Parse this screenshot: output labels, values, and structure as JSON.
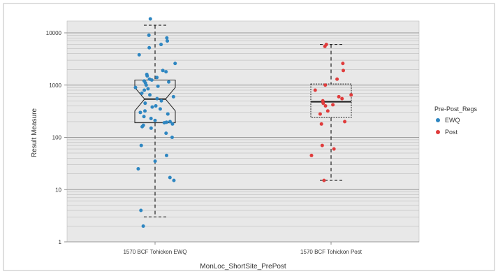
{
  "chart_data": {
    "type": "box",
    "xlabel": "MonLoc_ShortSite_PrePost",
    "ylabel": "Result Measure",
    "y_scale": "log",
    "ylim": [
      1,
      20000
    ],
    "y_ticks": [
      {
        "value": 1,
        "label": "1"
      },
      {
        "value": 10,
        "label": "10"
      },
      {
        "value": 100,
        "label": "100"
      },
      {
        "value": 1000,
        "label": "1000"
      },
      {
        "value": 10000,
        "label": "10000"
      }
    ],
    "categories": [
      "1570 BCF Tohickon EWQ",
      "1570 BCF Tohickon Post"
    ],
    "legend": {
      "title": "Pre-Post_Regs",
      "position": "right",
      "items": [
        {
          "label": "EWQ",
          "color": "#2e86c1"
        },
        {
          "label": "Post",
          "color": "#e03c3c"
        }
      ]
    },
    "boxes": [
      {
        "category": "1570 BCF Tohickon EWQ",
        "series": "EWQ",
        "whisker_low": 3,
        "q1": 190,
        "median": 540,
        "q3": 1250,
        "whisker_high": 14000,
        "notch_low": 320,
        "notch_high": 900
      },
      {
        "category": "1570 BCF Tohickon Post",
        "series": "Post",
        "whisker_low": 15,
        "q1": 240,
        "median": 480,
        "q3": 1050,
        "whisker_high": 6000
      }
    ],
    "points": [
      {
        "category": "1570 BCF Tohickon EWQ",
        "series": "EWQ",
        "values": [
          18500,
          9000,
          8000,
          7000,
          6000,
          5200,
          3800,
          2600,
          1900,
          1800,
          1600,
          1500,
          1400,
          1300,
          1250,
          1200,
          1150,
          1100,
          1000,
          950,
          900,
          850,
          800,
          700,
          650,
          600,
          550,
          500,
          450,
          400,
          380,
          350,
          320,
          300,
          280,
          250,
          230,
          210,
          200,
          195,
          190,
          180,
          170,
          160,
          150,
          120,
          100,
          70,
          45,
          35,
          25,
          17,
          15,
          4,
          2
        ]
      },
      {
        "category": "1570 BCF Tohickon Post",
        "series": "Post",
        "values": [
          6000,
          5500,
          2600,
          1900,
          1300,
          1000,
          800,
          650,
          600,
          550,
          500,
          450,
          420,
          400,
          320,
          280,
          200,
          180,
          70,
          60,
          45,
          15
        ]
      }
    ]
  }
}
